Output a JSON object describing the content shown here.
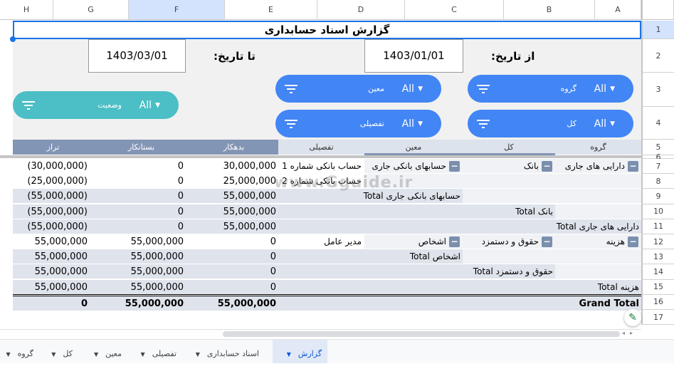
{
  "columns": [
    "H",
    "G",
    "F",
    "E",
    "D",
    "C",
    "B",
    "A"
  ],
  "rows": [
    "1",
    "2",
    "3",
    "4",
    "5",
    "6",
    "7",
    "8",
    "9",
    "10",
    "11",
    "12",
    "13",
    "14",
    "15",
    "16",
    "17"
  ],
  "title": "گزارش اسناد حسابداری",
  "from_label": "از تاریخ:",
  "from_date": "1403/01/01",
  "to_label": "تا تاریخ:",
  "to_date": "1403/03/01",
  "filters": [
    {
      "label": "گروه",
      "value": "All",
      "color": "#4285f4"
    },
    {
      "label": "کل",
      "value": "All",
      "color": "#4285f4"
    },
    {
      "label": "معین",
      "value": "All",
      "color": "#4285f4"
    },
    {
      "label": "تفصیلی",
      "value": "All",
      "color": "#4285f4"
    },
    {
      "label": "وضعیت",
      "value": "All",
      "color": "#4bbfc5"
    }
  ],
  "table": {
    "headers": {
      "group": "گروه",
      "kol": "کل",
      "moin": "معین",
      "tafsili": "تفصیلی",
      "debit": "بدهکار",
      "credit": "بستانکار",
      "balance": "تراز"
    },
    "rows": [
      {
        "group": "دارایی های جاری",
        "kol": "بانک",
        "moin": "حسابهای بانکی جاری",
        "tafsili": "حساب بانکی شماره 1",
        "debit": "30,000,000",
        "credit": "0",
        "balance": "(30,000,000)"
      },
      {
        "tafsili": "حساب بانکی شماره 2",
        "debit": "25,000,000",
        "credit": "0",
        "balance": "(25,000,000)"
      },
      {
        "total": "حسابهای بانکی جاری Total",
        "level": 2,
        "debit": "55,000,000",
        "credit": "0",
        "balance": "(55,000,000)"
      },
      {
        "total": "بانک Total",
        "level": 1,
        "debit": "55,000,000",
        "credit": "0",
        "balance": "(55,000,000)"
      },
      {
        "total": "دارایی های جاری Total",
        "level": 0,
        "debit": "55,000,000",
        "credit": "0",
        "balance": "(55,000,000)"
      },
      {
        "group": "هزینه",
        "kol": "حقوق و دستمزد",
        "moin": "اشخاص",
        "tafsili": "مدیر عامل",
        "debit": "0",
        "credit": "55,000,000",
        "balance": "55,000,000"
      },
      {
        "total": "اشخاص Total",
        "level": 2,
        "debit": "0",
        "credit": "55,000,000",
        "balance": "55,000,000"
      },
      {
        "total": "حقوق و دستمزد Total",
        "level": 1,
        "debit": "0",
        "credit": "55,000,000",
        "balance": "55,000,000"
      },
      {
        "total": "هزینه Total",
        "level": 0,
        "debit": "0",
        "credit": "55,000,000",
        "balance": "55,000,000"
      },
      {
        "total": "Grand Total",
        "level": 0,
        "grand": true,
        "debit": "55,000,000",
        "credit": "55,000,000",
        "balance": "0"
      }
    ]
  },
  "watermark": "www.Gguide.ir",
  "sheet_tabs": [
    {
      "label": "گزارش",
      "active": true
    },
    {
      "label": "اسناد حسابداری"
    },
    {
      "label": "تفصیلی"
    },
    {
      "label": "معین"
    },
    {
      "label": "کل"
    },
    {
      "label": "گروه"
    }
  ],
  "colors": {
    "accent": "#4285f4",
    "teal": "#4bbfc5",
    "header_dark": "#8395b5",
    "total_row": "#dfe3eb"
  }
}
